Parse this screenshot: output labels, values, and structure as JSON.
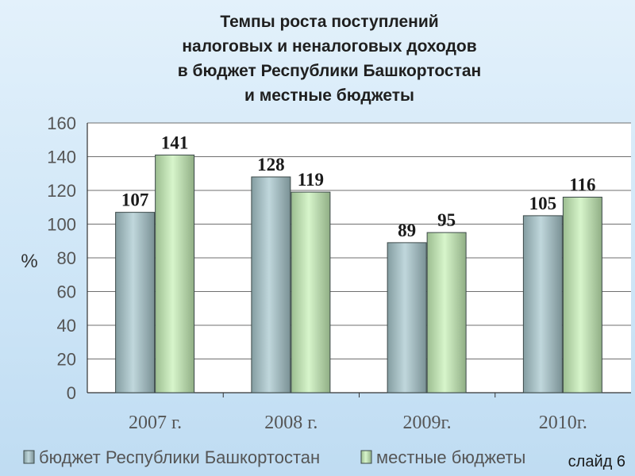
{
  "title_lines": [
    "Темпы роста поступлений",
    "налоговых и неналоговых доходов",
    "в бюджет Республики Башкортостан",
    "и местные бюджеты"
  ],
  "slide_label": "слайд 6",
  "chart_data": {
    "type": "bar",
    "categories": [
      "2007 г.",
      "2008 г.",
      "2009г.",
      "2010г."
    ],
    "series": [
      {
        "name": "бюджет Республики Башкортостан",
        "values": [
          107,
          128,
          89,
          105
        ],
        "color": "#a9c9cf"
      },
      {
        "name": "местные бюджеты",
        "values": [
          141,
          119,
          95,
          116
        ],
        "color": "#c8f2b9"
      }
    ],
    "ylabel": "%",
    "ylim": [
      0,
      160
    ],
    "yticks": [
      0,
      20,
      40,
      60,
      80,
      100,
      120,
      140,
      160
    ],
    "grid": true,
    "legend_position": "bottom",
    "data_labels": true
  }
}
